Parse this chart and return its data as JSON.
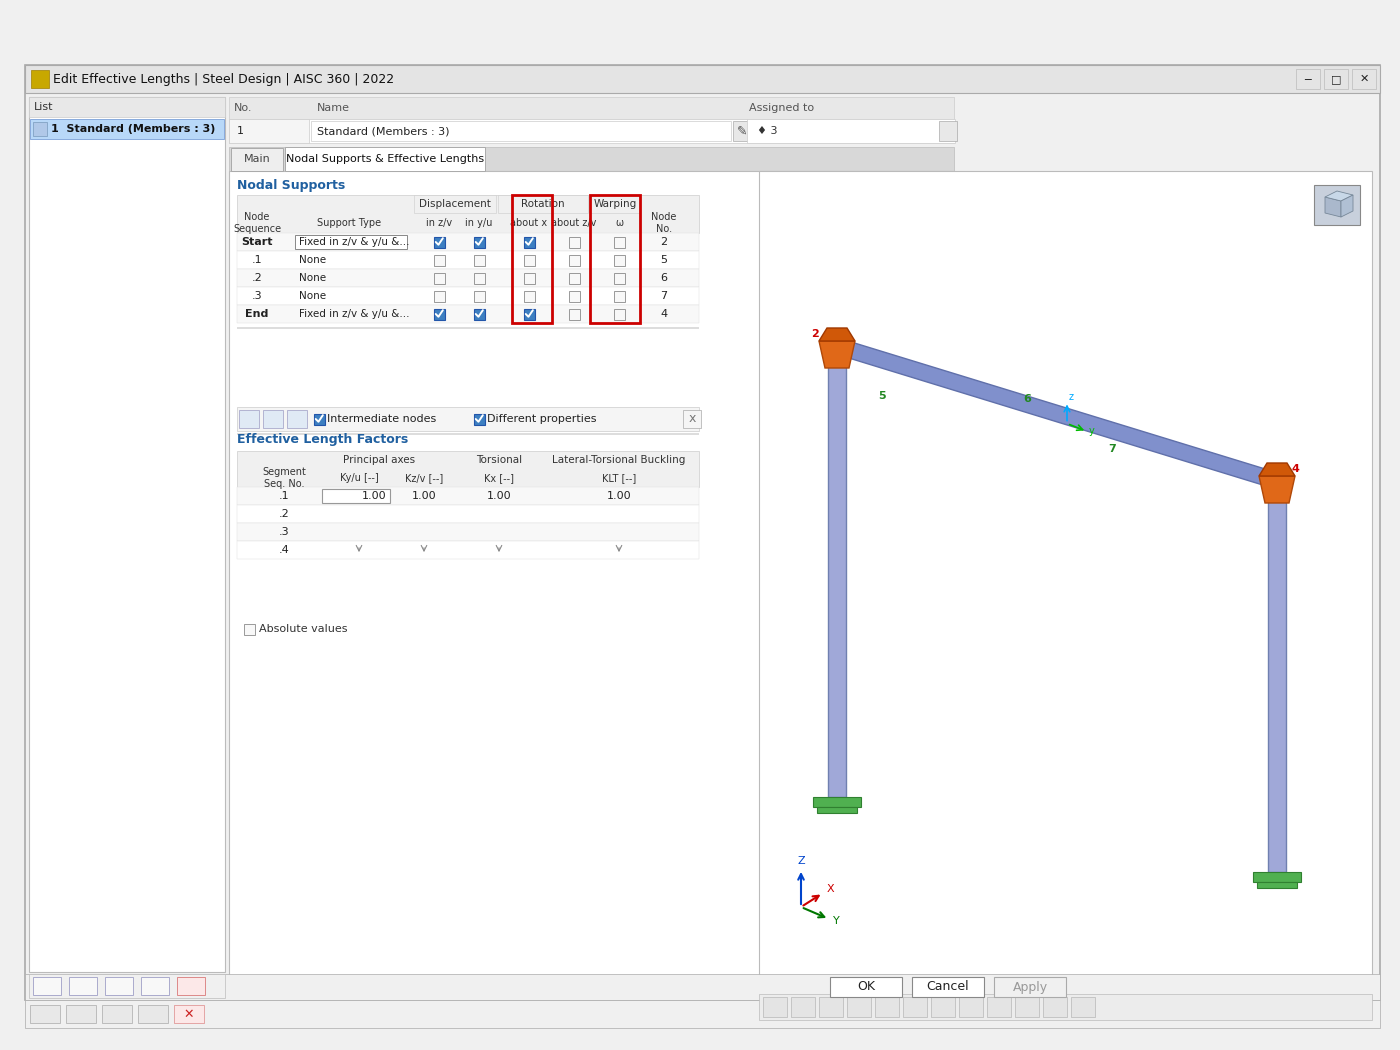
{
  "title": "Edit Effective Lengths | Steel Design | AISC 360 | 2022",
  "bg_color": "#f0f0f0",
  "white": "#ffffff",
  "blue_check": "#3d7fc1",
  "red_border": "#cc0000",
  "section_title_color": "#2060a0",
  "list_selected_bg": "#b8d8f8",
  "node_rows": [
    "Start",
    ".1",
    ".2",
    ".3",
    "End"
  ],
  "support_types": [
    "Fixed in z/v & y/u &...",
    "None",
    "None",
    "None",
    "Fixed in z/v & y/u &..."
  ],
  "disp_zv": [
    true,
    false,
    false,
    false,
    true
  ],
  "disp_yu": [
    true,
    false,
    false,
    false,
    true
  ],
  "rot_x": [
    true,
    false,
    false,
    false,
    true
  ],
  "rot_zv": [
    false,
    false,
    false,
    false,
    false
  ],
  "warp_w": [
    false,
    false,
    false,
    false,
    false
  ],
  "node_numbers": [
    "2",
    "5",
    "6",
    "7",
    "4"
  ],
  "seg_rows": [
    ".1",
    ".2",
    ".3",
    ".4"
  ],
  "kyu_val": "1.00",
  "kzv_val": "1.00",
  "kx_val": "1.00",
  "klt_val": "1.00"
}
